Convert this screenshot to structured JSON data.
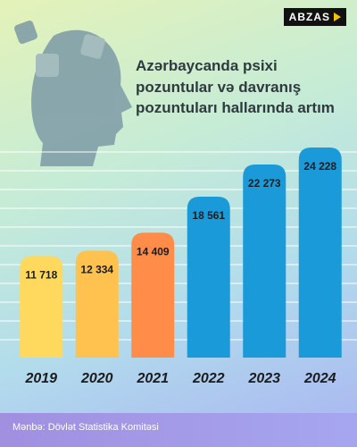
{
  "logo": "ABZAS",
  "chart_data": {
    "type": "bar",
    "title": "Azərbaycanda psixi pozuntular və davranış pozuntuları hallarında artım",
    "source": "Mənbə: Dövlət Statistika Komitəsi",
    "categories": [
      "2019",
      "2020",
      "2021",
      "2022",
      "2023",
      "2024"
    ],
    "values": [
      11718,
      12334,
      14409,
      18561,
      22273,
      24228
    ],
    "value_labels": [
      "11 718",
      "12 334",
      "14 409",
      "18 561",
      "22 273",
      "24 228"
    ],
    "colors": [
      "#ffd95e",
      "#ffc24f",
      "#ff8c48",
      "#1a9ad8",
      "#1a9ad8",
      "#1a9ad8"
    ]
  }
}
